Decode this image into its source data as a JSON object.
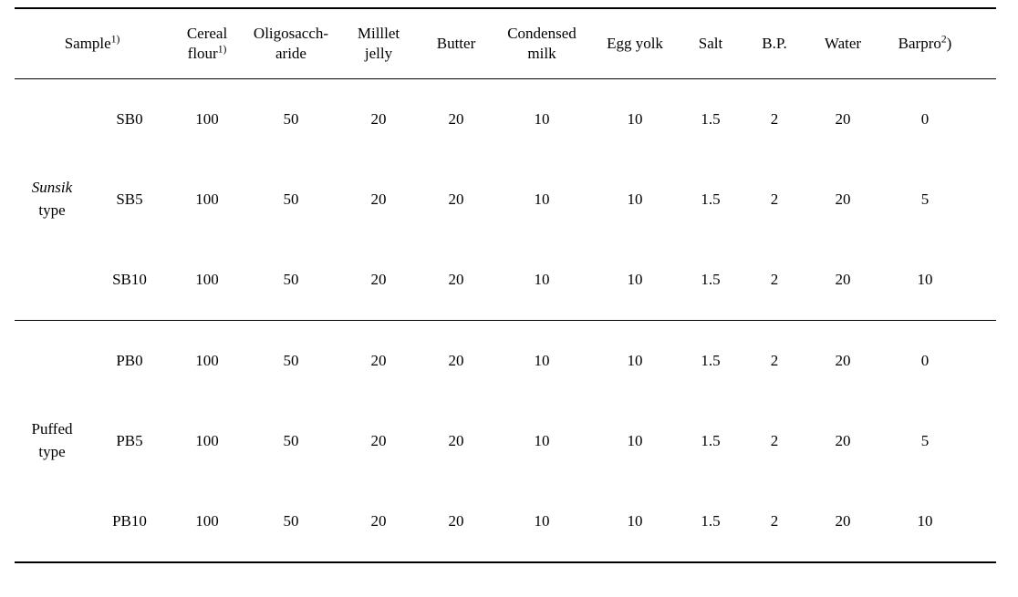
{
  "table": {
    "columns": {
      "sample_hdr": {
        "l1": "Sample",
        "sup": "1)"
      },
      "cereal": {
        "l1": "Cereal",
        "l2_pre": "flour",
        "l2_sup": "1)"
      },
      "oligo": {
        "l1": "Oligosacch-",
        "l2": "aride"
      },
      "millet": {
        "l1": "Milllet",
        "l2": "jelly"
      },
      "butter": {
        "l1": "Butter"
      },
      "cond": {
        "l1": "Condensed",
        "l2": "milk"
      },
      "egg": {
        "l1": "Egg  yolk"
      },
      "salt": {
        "l1": "Salt"
      },
      "bp": {
        "l1": "B.P."
      },
      "water": {
        "l1": "Water"
      },
      "barpro": {
        "l1_pre": "Barpro",
        "sup": "2",
        "l1_post": ")"
      }
    },
    "groups": [
      {
        "label_line1_italic": "Sunsik",
        "label_line2": "type",
        "rows": [
          {
            "code": "SB0",
            "cereal": "100",
            "oligo": "50",
            "millet": "20",
            "butter": "20",
            "cond": "10",
            "egg": "10",
            "salt": "1.5",
            "bp": "2",
            "water": "20",
            "barpro": "0"
          },
          {
            "code": "SB5",
            "cereal": "100",
            "oligo": "50",
            "millet": "20",
            "butter": "20",
            "cond": "10",
            "egg": "10",
            "salt": "1.5",
            "bp": "2",
            "water": "20",
            "barpro": "5"
          },
          {
            "code": "SB10",
            "cereal": "100",
            "oligo": "50",
            "millet": "20",
            "butter": "20",
            "cond": "10",
            "egg": "10",
            "salt": "1.5",
            "bp": "2",
            "water": "20",
            "barpro": "10"
          }
        ]
      },
      {
        "label_line1": "Puffed",
        "label_line2": "type",
        "rows": [
          {
            "code": "PB0",
            "cereal": "100",
            "oligo": "50",
            "millet": "20",
            "butter": "20",
            "cond": "10",
            "egg": "10",
            "salt": "1.5",
            "bp": "2",
            "water": "20",
            "barpro": "0"
          },
          {
            "code": "PB5",
            "cereal": "100",
            "oligo": "50",
            "millet": "20",
            "butter": "20",
            "cond": "10",
            "egg": "10",
            "salt": "1.5",
            "bp": "2",
            "water": "20",
            "barpro": "5"
          },
          {
            "code": "PB10",
            "cereal": "100",
            "oligo": "50",
            "millet": "20",
            "butter": "20",
            "cond": "10",
            "egg": "10",
            "salt": "1.5",
            "bp": "2",
            "water": "20",
            "barpro": "10"
          }
        ]
      }
    ]
  }
}
